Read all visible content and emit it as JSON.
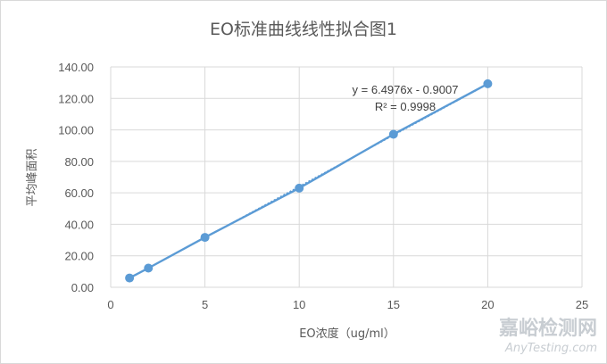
{
  "chart_data": {
    "type": "scatter",
    "title": "EO标准曲线线性拟合图1",
    "xlabel": "EO浓度（ug/ml）",
    "ylabel": "平均峰面积",
    "xlim": [
      0,
      25
    ],
    "ylim": [
      0,
      140
    ],
    "x_ticks": [
      "0",
      "5",
      "10",
      "15",
      "20",
      "25"
    ],
    "y_ticks": [
      "0.00",
      "20.00",
      "40.00",
      "60.00",
      "80.00",
      "100.00",
      "120.00",
      "140.00"
    ],
    "grid": true,
    "points": [
      {
        "x": 1,
        "y": 5.9
      },
      {
        "x": 2,
        "y": 12.2
      },
      {
        "x": 5,
        "y": 31.7
      },
      {
        "x": 10,
        "y": 63.0
      },
      {
        "x": 15,
        "y": 97.2
      },
      {
        "x": 20,
        "y": 129.3
      }
    ],
    "trendline": {
      "slope": 6.4976,
      "intercept": -0.9007,
      "equation": "y = 6.4976x - 0.9007",
      "r_squared": "R² = 0.9998"
    },
    "color": "#5b9bd5"
  },
  "watermark": {
    "cn": "嘉峪检测网",
    "en": "AnyTesting.com"
  }
}
